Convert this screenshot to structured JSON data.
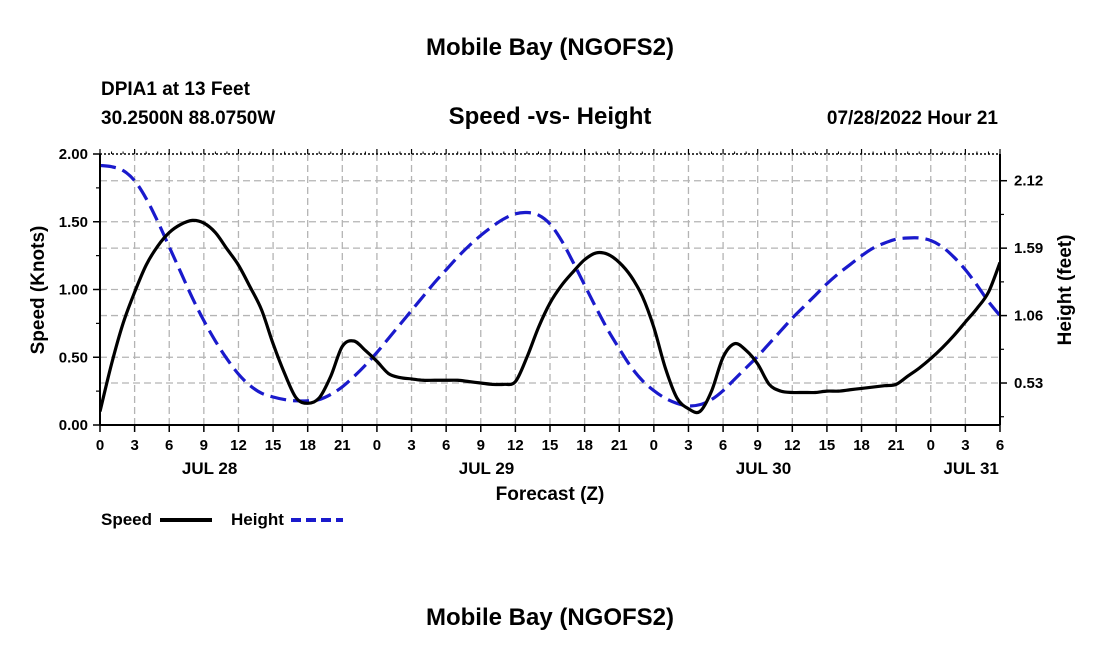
{
  "page": {
    "title": "Mobile Bay (NGOFS2)",
    "station": "DPIA1 at 13 Feet",
    "coords": "30.2500N  88.0750W",
    "subtitle": "Speed -vs- Height",
    "timestamp": "07/28/2022 Hour 21",
    "footer_title": "Mobile Bay (NGOFS2)"
  },
  "colors": {
    "speed": "#000000",
    "height": "#1a1acc",
    "grid": "#b4b4b4"
  },
  "chart_data": {
    "type": "line",
    "title": "Speed -vs- Height",
    "xlabel": "Forecast (Z)",
    "ylabel": "Speed (Knots)",
    "y2label": "Height (feet)",
    "xlim": [
      0,
      78
    ],
    "ylim": [
      0,
      2.0
    ],
    "y2lim": [
      0.2,
      2.33
    ],
    "grid": true,
    "legend_position": "bottom-left",
    "x_tick_labels": [
      "0",
      "3",
      "6",
      "9",
      "12",
      "15",
      "18",
      "21",
      "0",
      "3",
      "6",
      "9",
      "12",
      "15",
      "18",
      "21",
      "0",
      "3",
      "6",
      "9",
      "12",
      "15",
      "18",
      "21",
      "0",
      "3",
      "6"
    ],
    "date_labels": [
      {
        "label": "JUL 28",
        "x": 9.5
      },
      {
        "label": "JUL 29",
        "x": 33.5
      },
      {
        "label": "JUL 30",
        "x": 57.5
      },
      {
        "label": "JUL 31",
        "x": 75.5
      }
    ],
    "y_ticks": [
      "0.00",
      "0.50",
      "1.00",
      "1.50",
      "2.00"
    ],
    "y2_ticks": [
      "0.53",
      "1.06",
      "1.59",
      "2.12"
    ],
    "series": [
      {
        "name": "Speed",
        "axis": "left",
        "style": "solid",
        "x": [
          0,
          1,
          2,
          3,
          4,
          5,
          6,
          7,
          8,
          9,
          10,
          11,
          12,
          13,
          14,
          15,
          16,
          17,
          18,
          19,
          20,
          21,
          22,
          23,
          24,
          25,
          26,
          27,
          28,
          29,
          30,
          31,
          32,
          33,
          34,
          35,
          36,
          37,
          38,
          39,
          40,
          41,
          42,
          43,
          44,
          45,
          46,
          47,
          48,
          49,
          50,
          51,
          52,
          53,
          54,
          55,
          56,
          57,
          58,
          59,
          60,
          61,
          62,
          63,
          64,
          65,
          66,
          67,
          68,
          69,
          70,
          71,
          72,
          73,
          74,
          75,
          76,
          77,
          78
        ],
        "values": [
          0.1,
          0.45,
          0.75,
          0.98,
          1.18,
          1.32,
          1.42,
          1.48,
          1.51,
          1.49,
          1.42,
          1.3,
          1.18,
          1.02,
          0.85,
          0.6,
          0.38,
          0.2,
          0.16,
          0.2,
          0.36,
          0.58,
          0.62,
          0.55,
          0.47,
          0.38,
          0.35,
          0.34,
          0.33,
          0.33,
          0.33,
          0.33,
          0.32,
          0.31,
          0.3,
          0.3,
          0.32,
          0.5,
          0.72,
          0.9,
          1.03,
          1.13,
          1.22,
          1.27,
          1.26,
          1.2,
          1.1,
          0.95,
          0.72,
          0.42,
          0.2,
          0.12,
          0.1,
          0.25,
          0.5,
          0.6,
          0.55,
          0.45,
          0.3,
          0.25,
          0.24,
          0.24,
          0.24,
          0.25,
          0.25,
          0.26,
          0.27,
          0.28,
          0.29,
          0.3,
          0.36,
          0.42,
          0.49,
          0.57,
          0.66,
          0.76,
          0.86,
          0.98,
          1.2
        ]
      },
      {
        "name": "Height",
        "axis": "right",
        "style": "dashed",
        "x": [
          0,
          1,
          2,
          3,
          4,
          5,
          6,
          7,
          8,
          9,
          10,
          11,
          12,
          13,
          14,
          15,
          16,
          17,
          18,
          19,
          20,
          21,
          22,
          23,
          24,
          25,
          26,
          27,
          28,
          29,
          30,
          31,
          32,
          33,
          34,
          35,
          36,
          37,
          38,
          39,
          40,
          41,
          42,
          43,
          44,
          45,
          46,
          47,
          48,
          49,
          50,
          51,
          52,
          53,
          54,
          55,
          56,
          57,
          58,
          59,
          60,
          61,
          62,
          63,
          64,
          65,
          66,
          67,
          68,
          69,
          70,
          71,
          72,
          73,
          74,
          75,
          76,
          77,
          78
        ],
        "values": [
          2.24,
          2.23,
          2.2,
          2.12,
          1.98,
          1.8,
          1.6,
          1.4,
          1.2,
          1.02,
          0.86,
          0.72,
          0.6,
          0.51,
          0.45,
          0.42,
          0.4,
          0.39,
          0.39,
          0.4,
          0.44,
          0.5,
          0.58,
          0.67,
          0.77,
          0.88,
          0.99,
          1.1,
          1.21,
          1.32,
          1.42,
          1.52,
          1.61,
          1.69,
          1.76,
          1.82,
          1.86,
          1.87,
          1.85,
          1.78,
          1.65,
          1.48,
          1.3,
          1.12,
          0.95,
          0.8,
          0.66,
          0.55,
          0.47,
          0.41,
          0.37,
          0.35,
          0.36,
          0.4,
          0.47,
          0.56,
          0.65,
          0.74,
          0.84,
          0.94,
          1.04,
          1.13,
          1.22,
          1.31,
          1.39,
          1.46,
          1.53,
          1.59,
          1.63,
          1.66,
          1.67,
          1.67,
          1.65,
          1.6,
          1.52,
          1.42,
          1.3,
          1.17,
          1.06
        ]
      }
    ]
  },
  "legend": {
    "speed_label": "Speed",
    "height_label": "Height"
  }
}
